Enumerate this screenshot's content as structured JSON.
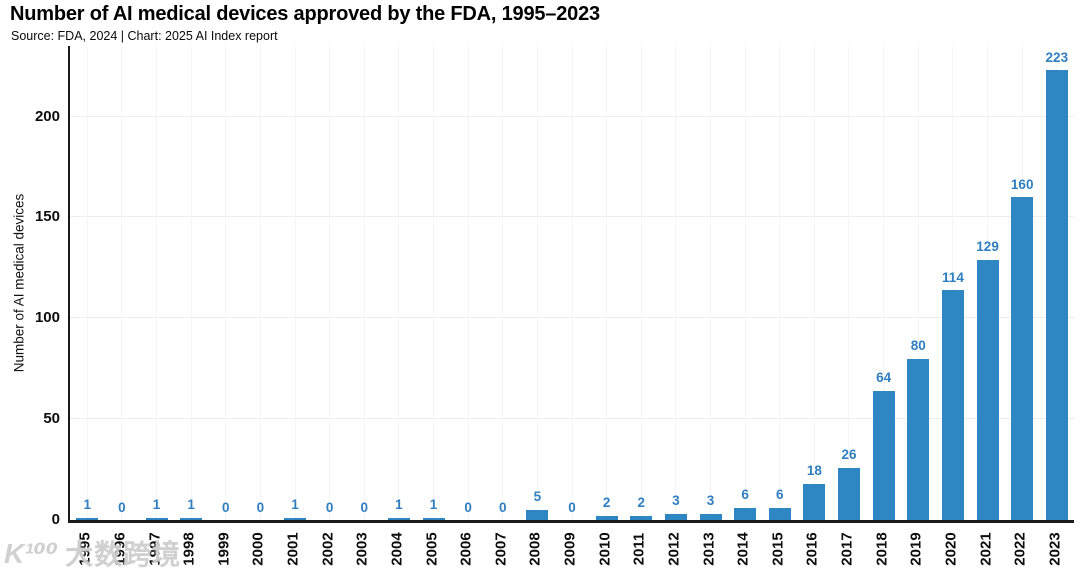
{
  "header": {
    "title": "Number of AI medical devices approved by the FDA, 1995–2023",
    "subtitle": "Source: FDA, 2024 | Chart: 2025 AI Index report"
  },
  "chart_data": {
    "type": "bar",
    "title": "Number of AI medical devices approved by the FDA, 1995–2023",
    "subtitle": "Source: FDA, 2024 | Chart: 2025 AI Index report",
    "xlabel": "",
    "ylabel": "Number of AI medical devices",
    "categories": [
      "1995",
      "1996",
      "1997",
      "1998",
      "1999",
      "2000",
      "2001",
      "2002",
      "2003",
      "2004",
      "2005",
      "2006",
      "2007",
      "2008",
      "2009",
      "2010",
      "2011",
      "2012",
      "2013",
      "2014",
      "2015",
      "2016",
      "2017",
      "2018",
      "2019",
      "2020",
      "2021",
      "2022",
      "2023"
    ],
    "values": [
      1,
      0,
      1,
      1,
      0,
      0,
      1,
      0,
      0,
      1,
      1,
      0,
      0,
      5,
      0,
      2,
      2,
      3,
      3,
      6,
      6,
      18,
      26,
      64,
      80,
      114,
      129,
      160,
      223
    ],
    "yticks": [
      0,
      50,
      100,
      150,
      200
    ],
    "ylim": [
      0,
      235
    ],
    "grid": true,
    "legend": "none",
    "bar_color": "#2e86c3",
    "value_label_color": "#2f7fc0",
    "axis_color": "#1a1a1a",
    "tick_label_color": "#0d0d0d"
  },
  "watermark": {
    "logo": "K¹⁰⁰",
    "text": "大数跨境"
  }
}
